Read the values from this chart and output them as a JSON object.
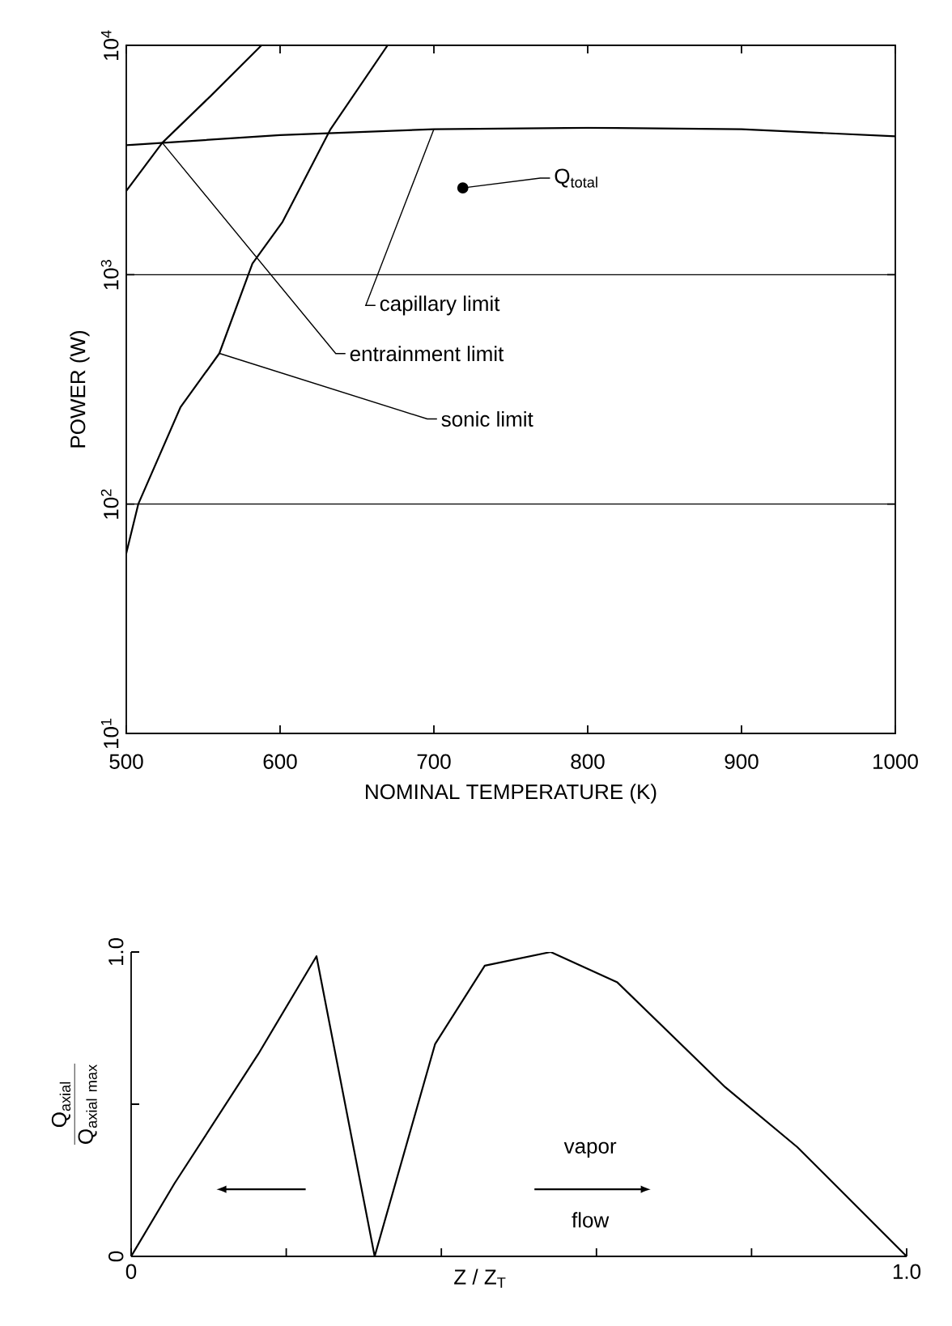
{
  "chart_data": [
    {
      "type": "line",
      "xlabel": "NOMINAL TEMPERATURE  (K)",
      "ylabel": "POWER   (W)",
      "log": "y",
      "grid": "y",
      "xlim": [
        500,
        1000
      ],
      "ylim": [
        10,
        10000
      ],
      "xticks": [
        500,
        600,
        700,
        800,
        900,
        1000
      ],
      "yticks": [
        {
          "value": 10,
          "label": "10$^{1}$"
        },
        {
          "value": 100,
          "label": "10$^{2}$"
        },
        {
          "value": 1000,
          "label": "10$^{3}$"
        },
        {
          "value": 10000,
          "label": "10$^{4}$"
        }
      ],
      "series": [
        {
          "name": "capillary limit",
          "color": "#000000",
          "x": [
            500,
            600,
            700,
            800,
            900,
            1000
          ],
          "values": [
            3670,
            4060,
            4310,
            4370,
            4310,
            4010
          ]
        },
        {
          "name": "entrainment limit",
          "color": "#000000",
          "x": [
            500,
            523.4,
            554.7,
            587.9
          ],
          "values": [
            2320,
            3760,
            6000,
            10000
          ]
        },
        {
          "name": "sonic limit",
          "color": "#000000",
          "x": [
            500,
            507.8,
            535.2,
            560.5,
            582,
            601.6,
            632.8,
            669.9
          ],
          "values": [
            61,
            100,
            264,
            454,
            1117,
            1700,
            4310,
            10000
          ]
        },
        {
          "type": "scatter",
          "color": "#000000",
          "x": [
            718.8
          ],
          "values": [
            2390
          ]
        }
      ],
      "annotations": [
        {
          "text": "Q$_{total}$",
          "x": 718.8,
          "y": 2390
        }
      ]
    },
    {
      "type": "line",
      "xlabel": "Z / Z$_{T}$",
      "ylabel": "\\frac{\\mathrm{Q_{axial}}}{\\mathrm{Q_{axial\\ max}}}",
      "xlim": [
        0,
        1.0
      ],
      "ylim": [
        0,
        1.0
      ],
      "xticks": [
        0,
        {
          "value": 0.2,
          "label": null
        },
        {
          "value": 0.4,
          "label": null
        },
        {
          "value": 0.6,
          "label": null
        },
        {
          "value": 0.8,
          "label": null
        },
        {
          "value": 1.0,
          "label": "1.0"
        }
      ],
      "yticks": [
        0,
        {
          "value": 0.5,
          "label": null
        },
        {
          "value": 1.0,
          "label": "1.0"
        }
      ],
      "annotations": [
        "vapor",
        "flow"
      ],
      "series": [
        {
          "color": "#000000",
          "x": [
            0,
            0.056,
            0.164,
            0.239,
            0.314,
            0.392,
            0.456,
            0.541,
            0.627,
            0.766,
            0.859,
            1.0
          ],
          "values": [
            0,
            0.24,
            0.665,
            0.986,
            0,
            0.698,
            0.955,
            1.0,
            0.9,
            0.556,
            0.359,
            0
          ]
        }
      ]
    }
  ]
}
